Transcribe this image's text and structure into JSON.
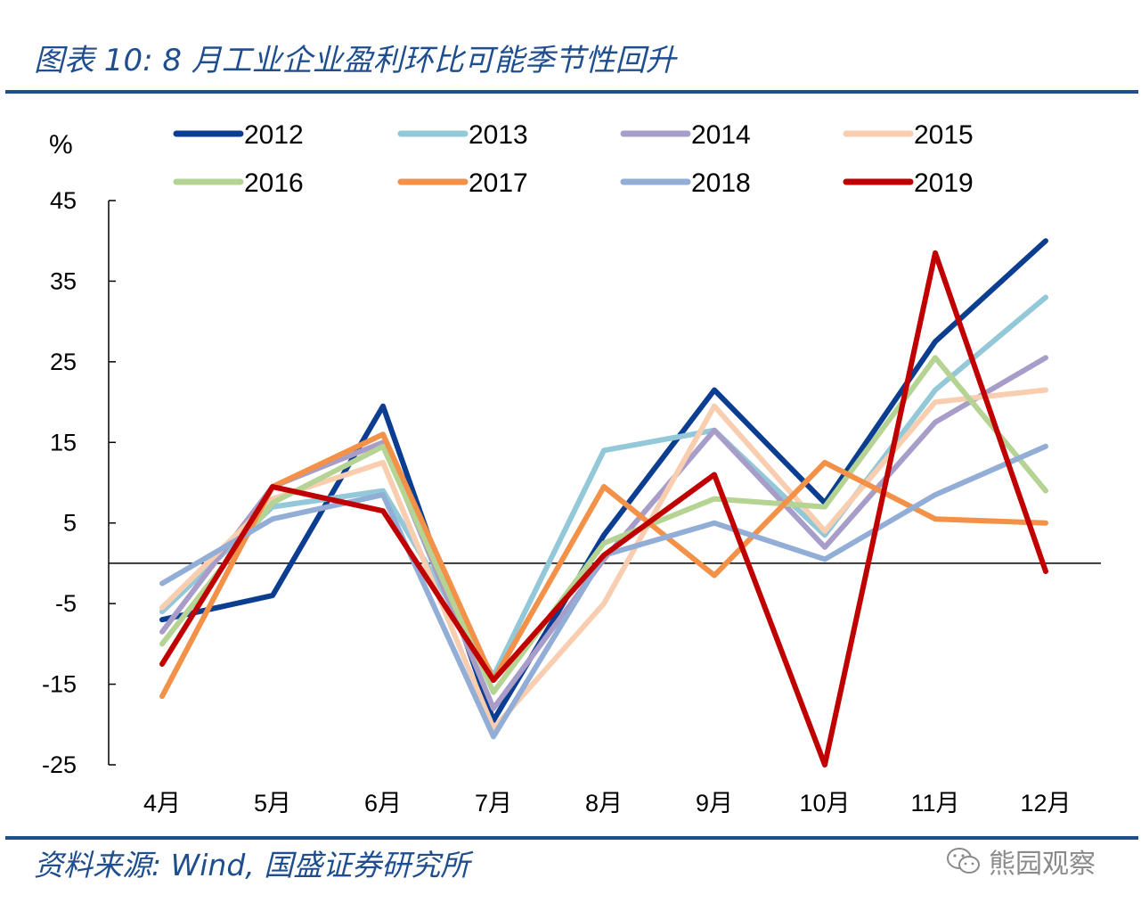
{
  "header": {
    "title": "图表 10:  8 月工业企业盈利环比可能季节性回升"
  },
  "footer": {
    "source": "资料来源:  Wind,  国盛证券研究所",
    "watermark": "熊园观察"
  },
  "chart_data": {
    "type": "line",
    "title": "图表 10:  8 月工业企业盈利环比可能季节性回升",
    "ylabel": "%",
    "xlabel": "",
    "ylim": [
      -25,
      45
    ],
    "yticks": [
      45,
      35,
      25,
      15,
      5,
      -5,
      -15,
      -25
    ],
    "categories": [
      "4月",
      "5月",
      "6月",
      "7月",
      "8月",
      "9月",
      "10月",
      "11月",
      "12月"
    ],
    "legend_position": "top",
    "series": [
      {
        "name": "2012",
        "color": "#0b3d91",
        "values": [
          -7,
          -4,
          19.5,
          -19.5,
          3.5,
          21.5,
          7.5,
          27.5,
          40
        ]
      },
      {
        "name": "2013",
        "color": "#92c8d8",
        "values": [
          -6,
          7,
          9,
          -14,
          14,
          16.5,
          3.5,
          21.5,
          33
        ]
      },
      {
        "name": "2014",
        "color": "#a89cc8",
        "values": [
          -8.5,
          9.5,
          15,
          -18,
          0.5,
          16.5,
          2,
          17.5,
          25.5
        ]
      },
      {
        "name": "2015",
        "color": "#f8cdb0",
        "values": [
          -5.5,
          8,
          12.5,
          -20.5,
          -5,
          19.5,
          4,
          20,
          21.5
        ]
      },
      {
        "name": "2016",
        "color": "#b5d494",
        "values": [
          -10,
          7.5,
          14.5,
          -16,
          2.5,
          8,
          7,
          25.5,
          9
        ]
      },
      {
        "name": "2017",
        "color": "#f39148",
        "values": [
          -16.5,
          9.5,
          16,
          -14.5,
          9.5,
          -1.5,
          12.5,
          5.5,
          5
        ]
      },
      {
        "name": "2018",
        "color": "#92aed6",
        "values": [
          -2.5,
          5.5,
          8.5,
          -21.5,
          1,
          5,
          0.5,
          8.5,
          14.5
        ]
      },
      {
        "name": "2019",
        "color": "#c00000",
        "values": [
          -12.5,
          9.5,
          6.5,
          -14.5,
          1,
          11,
          -25,
          38.5,
          -1
        ]
      }
    ]
  }
}
